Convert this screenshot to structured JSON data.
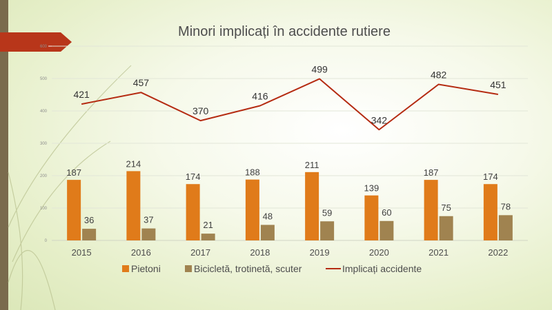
{
  "colors": {
    "pietoni": "#e07b1a",
    "biciclete": "#a08350",
    "line": "#b52b12",
    "banner": "#b8361a",
    "left_bar": "#7a6b4d",
    "grid": "#e2e6d8"
  },
  "chart_data": {
    "type": "bar",
    "title": "Minori implicați în accidente rutiere",
    "categories": [
      "2015",
      "2016",
      "2017",
      "2018",
      "2019",
      "2020",
      "2021",
      "2022"
    ],
    "y_ticks": [
      "0",
      "100",
      "200",
      "300",
      "400",
      "500",
      "600"
    ],
    "ylim": [
      0,
      600
    ],
    "grid": true,
    "legend_position": "bottom",
    "series": [
      {
        "name": "Pietoni",
        "type": "bar",
        "values": [
          187,
          214,
          174,
          188,
          211,
          139,
          187,
          174
        ]
      },
      {
        "name": "Bicicletă, trotinetă, scuter",
        "type": "bar",
        "values": [
          36,
          37,
          21,
          48,
          59,
          60,
          75,
          78
        ]
      },
      {
        "name": "Implicați accidente",
        "type": "line",
        "values": [
          421,
          457,
          370,
          416,
          499,
          342,
          482,
          451
        ]
      }
    ]
  }
}
